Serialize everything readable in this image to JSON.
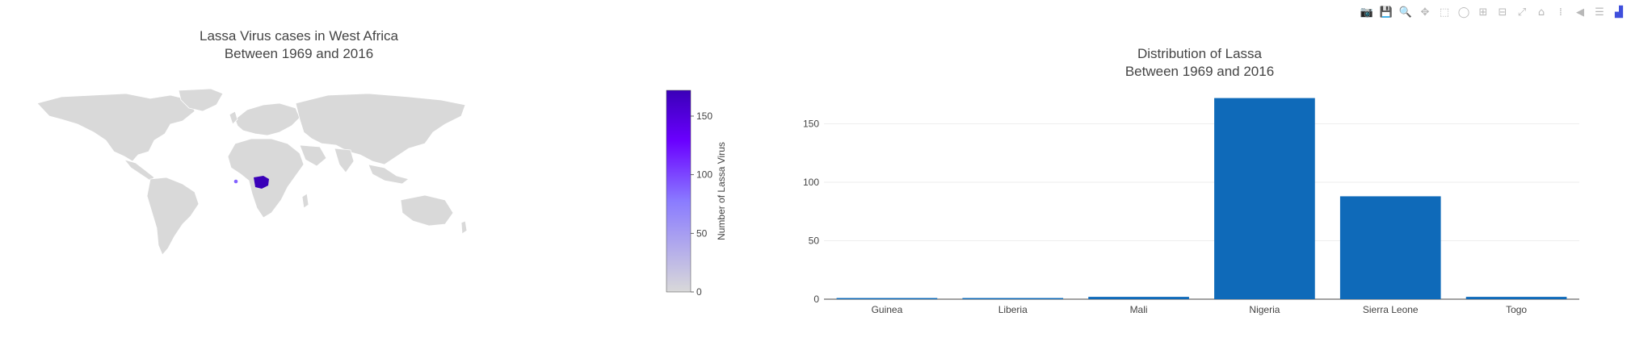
{
  "modebar": [
    {
      "name": "camera-icon",
      "glyph": "📷"
    },
    {
      "name": "save-icon",
      "glyph": "💾"
    },
    {
      "name": "zoom-icon",
      "glyph": "🔍"
    },
    {
      "name": "pan-icon",
      "glyph": "✥"
    },
    {
      "name": "box-select-icon",
      "glyph": "⬚"
    },
    {
      "name": "lasso-select-icon",
      "glyph": "◯"
    },
    {
      "name": "zoom-in-icon",
      "glyph": "⊞"
    },
    {
      "name": "zoom-out-icon",
      "glyph": "⊟"
    },
    {
      "name": "autoscale-icon",
      "glyph": "⤢"
    },
    {
      "name": "home-icon",
      "glyph": "⌂"
    },
    {
      "name": "spike-lines-icon",
      "glyph": "⁞"
    },
    {
      "name": "hover-closest-icon",
      "glyph": "◀"
    },
    {
      "name": "hover-compare-icon",
      "glyph": "☰"
    },
    {
      "name": "plotly-logo-icon",
      "glyph": "▟"
    }
  ],
  "chart_data": [
    {
      "type": "choropleth",
      "title_line1": "Lassa Virus cases in West Africa",
      "title_line2": "Between 1969 and 2016",
      "colorbar": {
        "title": "Number of Lassa Virus",
        "range": [
          0,
          172
        ],
        "ticks": [
          "0",
          "50",
          "100",
          "150"
        ],
        "tick_values": [
          0,
          50,
          100,
          150
        ],
        "colors": [
          "#d9d9d9",
          "#8a7bff",
          "#6a00ff",
          "#3a00b8"
        ]
      },
      "land_color": "#d9d9d9",
      "regions": [
        {
          "country": "Nigeria",
          "value": 172
        },
        {
          "country": "Sierra Leone",
          "value": 88
        }
      ]
    },
    {
      "type": "bar",
      "title_line1": "Distribution of Lassa",
      "title_line2": "Between 1969 and 2016",
      "categories": [
        "Guinea",
        "Liberia",
        "Mali",
        "Nigeria",
        "Sierra Leone",
        "Togo"
      ],
      "values": [
        1,
        1,
        2,
        172,
        88,
        2
      ],
      "ylim": [
        0,
        180
      ],
      "yticks": [
        0,
        50,
        100,
        150
      ],
      "bar_color": "#0f6ab9",
      "grid": true
    }
  ]
}
